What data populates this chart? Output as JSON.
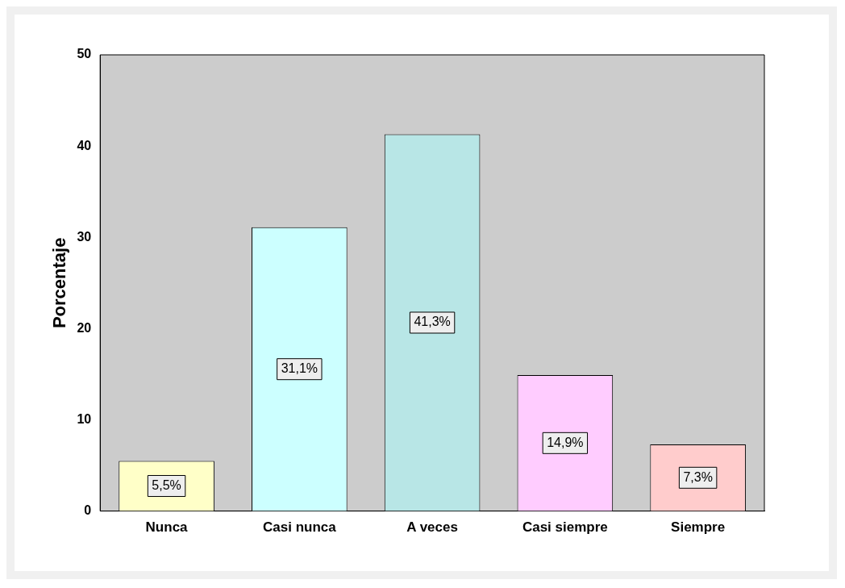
{
  "chart_data": {
    "type": "bar",
    "ylabel": "Porcentaje",
    "categories": [
      "Nunca",
      "Casi nunca",
      "A veces",
      "Casi siempre",
      "Siempre"
    ],
    "values": [
      5.5,
      31.1,
      41.3,
      14.9,
      7.3
    ],
    "colors": [
      "#ffffc8",
      "#ccffff",
      "#b8e6e6",
      "#ffccff",
      "#ffcccc"
    ],
    "value_labels": [
      "5,5%",
      "31,1%",
      "41,3%",
      "14,9%",
      "7,3%"
    ],
    "ylim": [
      0,
      50
    ],
    "yticks": [
      0,
      10,
      20,
      30,
      40,
      50
    ],
    "grid": false,
    "legend": false
  }
}
